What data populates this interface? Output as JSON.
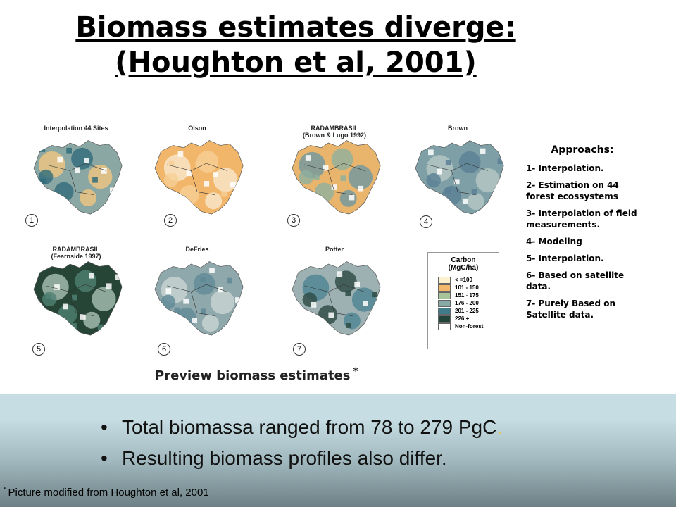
{
  "title": {
    "line1": "Biomass estimates diverge:",
    "line2": "(Houghton et al, 2001)"
  },
  "maps": [
    {
      "label": "Interpolation 44 Sites",
      "number": "1",
      "fill": "#8aa7a3",
      "fill2": "#2f6c7b",
      "fill3": "#f0c77f"
    },
    {
      "label": "Olson",
      "number": "2",
      "fill": "#f2b66a",
      "fill2": "#f6cf96",
      "fill3": "#f8e9cc"
    },
    {
      "label": "RADAMBRASIL\n(Brown & Lugo 1992)",
      "number": "3",
      "fill": "#e9b46c",
      "fill2": "#8fb09d",
      "fill3": "#6e97a0"
    },
    {
      "label": "Brown",
      "number": "4",
      "fill": "#7f9fa7",
      "fill2": "#5a7f95",
      "fill3": "#b7c8c6"
    },
    {
      "label": "RADAMBRASIL\n(Fearnside 1997)",
      "number": "5",
      "fill": "#264536",
      "fill2": "#4f7f72",
      "fill3": "#a9c1b6"
    },
    {
      "label": "DeFries",
      "number": "6",
      "fill": "#8fa8ab",
      "fill2": "#5f8a97",
      "fill3": "#c9d6d4"
    },
    {
      "label": "Potter",
      "number": "7",
      "fill": "#9db1b2",
      "fill2": "#2d4a42",
      "fill3": "#4f8594"
    }
  ],
  "legend": {
    "title_line1": "Carbon",
    "title_line2": "(MgC/ha)",
    "items": [
      {
        "label": "< =100",
        "color": "#fbf1cf"
      },
      {
        "label": "101 - 150",
        "color": "#f3b86c"
      },
      {
        "label": "151 - 175",
        "color": "#a7c39a"
      },
      {
        "label": "176 - 200",
        "color": "#88aaa6"
      },
      {
        "label": "201 - 225",
        "color": "#3f7b8b"
      },
      {
        "label": "226 +",
        "color": "#22443a"
      },
      {
        "label": "Non-forest",
        "color": "#ffffff"
      }
    ]
  },
  "approaches": {
    "title": "Approachs:",
    "items": [
      "1- Interpolation.",
      "2- Estimation on 44 forest ecossystems",
      "3- Interpolation of field measurements.",
      "4- Modeling",
      "5- Interpolation.",
      "6- Based on satellite data.",
      "7- Purely Based on Satellite data."
    ]
  },
  "caption": {
    "text": "Preview biomass estimates",
    "mark": "*"
  },
  "bullets": [
    {
      "text": "Total biomassa ranged from 78 to 279 PgC",
      "accent": "."
    },
    {
      "text": "Resulting biomass profiles also differ.",
      "accent": ""
    }
  ],
  "bullet_symbol": "•",
  "footnote": {
    "mark": "*",
    "text": "Picture modified from Houghton et al, 2001"
  }
}
